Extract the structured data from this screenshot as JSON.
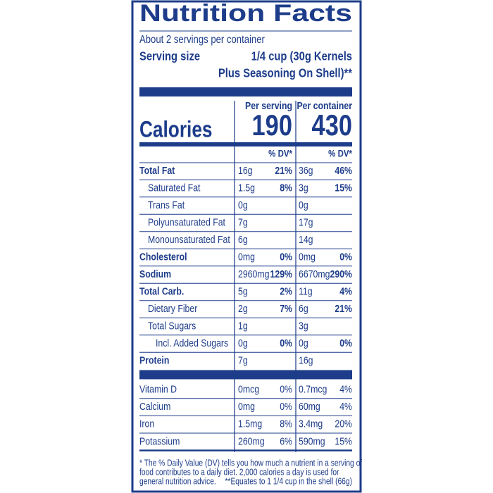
{
  "header": {
    "title": "Nutrition Facts",
    "servings": "About 2 servings per container",
    "serving_size_label": "Serving size",
    "serving_size_line1": "1/4 cup (30g Kernels",
    "serving_size_line2": "Plus Seasoning On Shell)**"
  },
  "columns": [
    "Per serving",
    "Per container"
  ],
  "calories": {
    "label": "Calories",
    "values": [
      190,
      430
    ]
  },
  "dv_header": "% DV*",
  "nutrients": [
    {
      "name": "Total Fat",
      "bold": true,
      "level": 0,
      "values": [
        [
          "16g",
          "21%"
        ],
        [
          "36g",
          "46%"
        ]
      ]
    },
    {
      "name": "Saturated Fat",
      "bold": false,
      "level": 1,
      "values": [
        [
          "1.5g",
          "8%"
        ],
        [
          "3g",
          "15%"
        ]
      ]
    },
    {
      "name": "Trans Fat",
      "bold": false,
      "level": 1,
      "values": [
        [
          "0g"
        ],
        [
          "0g"
        ]
      ]
    },
    {
      "name": "Polyunsaturated Fat",
      "bold": false,
      "level": 1,
      "values": [
        [
          "7g"
        ],
        [
          "17g"
        ]
      ]
    },
    {
      "name": "Monounsaturated Fat",
      "bold": false,
      "level": 1,
      "values": [
        [
          "6g"
        ],
        [
          "14g"
        ]
      ]
    },
    {
      "name": "Cholesterol",
      "bold": true,
      "level": 0,
      "values": [
        [
          "0mg",
          "0%"
        ],
        [
          "0mg",
          "0%"
        ]
      ]
    },
    {
      "name": "Sodium",
      "bold": true,
      "level": 0,
      "values": [
        [
          "2960mg",
          "129%"
        ],
        [
          "6670mg",
          "290%"
        ]
      ]
    },
    {
      "name": "Total Carb.",
      "bold": true,
      "level": 0,
      "values": [
        [
          "5g",
          "2%"
        ],
        [
          "11g",
          "4%"
        ]
      ]
    },
    {
      "name": "Dietary Fiber",
      "bold": false,
      "level": 1,
      "values": [
        [
          "2g",
          "7%"
        ],
        [
          "6g",
          "21%"
        ]
      ]
    },
    {
      "name": "Total Sugars",
      "bold": false,
      "level": 1,
      "values": [
        [
          "1g"
        ],
        [
          "3g"
        ]
      ]
    },
    {
      "name": "Incl. Added Sugars",
      "bold": false,
      "level": 2,
      "values": [
        [
          "0g",
          "0%"
        ],
        [
          "0g",
          "0%"
        ]
      ]
    },
    {
      "name": "Protein",
      "bold": true,
      "level": 0,
      "values": [
        [
          "7g"
        ],
        [
          "16g"
        ]
      ]
    }
  ],
  "vitamins": [
    {
      "name": "Vitamin D",
      "values": [
        [
          "0mcg",
          "0%"
        ],
        [
          "0.7mcg",
          "4%"
        ]
      ]
    },
    {
      "name": "Calcium",
      "values": [
        [
          "0mg",
          "0%"
        ],
        [
          "60mg",
          "4%"
        ]
      ]
    },
    {
      "name": "Iron",
      "values": [
        [
          "1.5mg",
          "8%"
        ],
        [
          "3.4mg",
          "20%"
        ]
      ]
    },
    {
      "name": "Potassium",
      "values": [
        [
          "260mg",
          "6%"
        ],
        [
          "590mg",
          "15%"
        ]
      ]
    }
  ],
  "footnote": [
    "* The % Daily Value (DV) tells you how much a nutrient in a serving of",
    "food contributes to a daily diet. 2,000 calories a day is used for",
    "general nutrition advice."
  ],
  "note": "**Equates to 1 1/4 cup in the shell (66g)"
}
